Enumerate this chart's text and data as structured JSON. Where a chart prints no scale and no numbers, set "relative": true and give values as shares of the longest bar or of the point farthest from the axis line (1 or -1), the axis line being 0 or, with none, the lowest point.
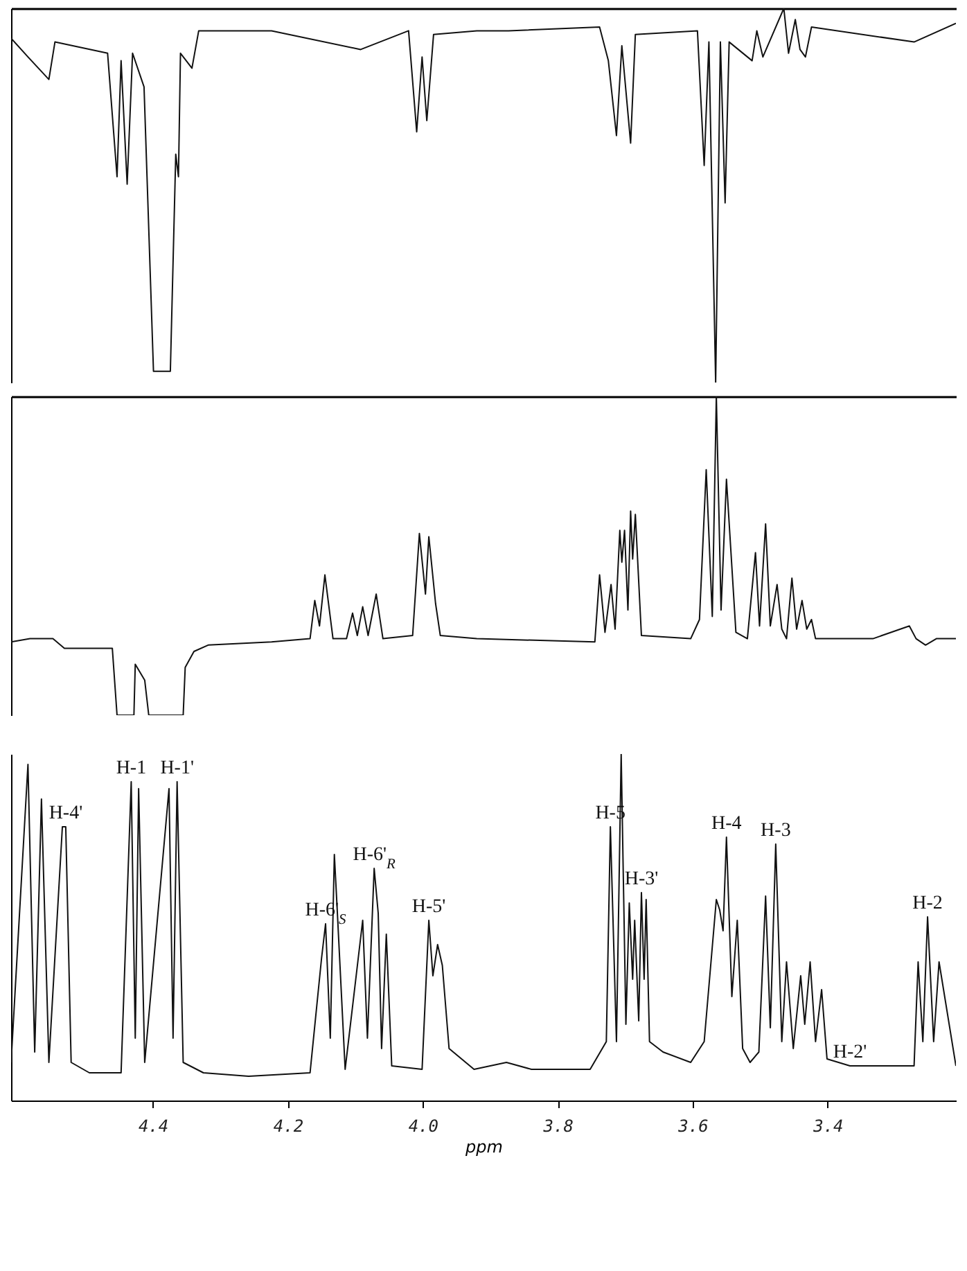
{
  "chart_data": [
    {
      "type": "line",
      "relative": true,
      "color": "#111111",
      "marker": "none",
      "line_style": "solid",
      "tick_labels": false,
      "xlim": [
        4.61,
        3.21
      ],
      "x": [
        4.61,
        4.585,
        4.554,
        4.545,
        4.467,
        4.453,
        4.447,
        4.438,
        4.43,
        4.413,
        4.399,
        4.374,
        4.366,
        4.362,
        4.359,
        4.342,
        4.332,
        4.224,
        4.092,
        4.021,
        4.009,
        4.001,
        3.994,
        3.984,
        3.92,
        3.873,
        3.738,
        3.725,
        3.713,
        3.705,
        3.692,
        3.685,
        3.593,
        3.583,
        3.576,
        3.566,
        3.559,
        3.552,
        3.546,
        3.512,
        3.505,
        3.496,
        3.465,
        3.458,
        3.448,
        3.441,
        3.433,
        3.424,
        3.272,
        3.21
      ],
      "values": [
        0.92,
        0.87,
        0.81,
        0.91,
        0.88,
        0.55,
        0.86,
        0.53,
        0.88,
        0.79,
        0.03,
        0.03,
        0.61,
        0.55,
        0.88,
        0.84,
        0.94,
        0.94,
        0.89,
        0.94,
        0.67,
        0.87,
        0.7,
        0.93,
        0.94,
        0.94,
        0.95,
        0.86,
        0.66,
        0.9,
        0.64,
        0.93,
        0.94,
        0.58,
        0.91,
        0.0,
        0.91,
        0.48,
        0.91,
        0.86,
        0.94,
        0.87,
        1.0,
        0.88,
        0.97,
        0.89,
        0.87,
        0.95,
        0.91,
        0.96
      ]
    },
    {
      "type": "line",
      "relative": true,
      "color": "#111111",
      "marker": "none",
      "line_style": "solid",
      "tick_labels": false,
      "xlim": [
        4.61,
        3.21
      ],
      "x": [
        4.61,
        4.582,
        4.548,
        4.531,
        4.46,
        4.453,
        4.428,
        4.426,
        4.412,
        4.406,
        4.355,
        4.352,
        4.339,
        4.318,
        4.224,
        4.167,
        4.16,
        4.153,
        4.145,
        4.133,
        4.113,
        4.104,
        4.097,
        4.089,
        4.081,
        4.069,
        4.059,
        4.015,
        4.005,
        3.996,
        3.991,
        3.981,
        3.974,
        3.92,
        3.745,
        3.738,
        3.73,
        3.721,
        3.715,
        3.708,
        3.705,
        3.701,
        3.696,
        3.692,
        3.689,
        3.685,
        3.676,
        3.603,
        3.59,
        3.58,
        3.571,
        3.565,
        3.558,
        3.55,
        3.536,
        3.519,
        3.507,
        3.501,
        3.492,
        3.485,
        3.475,
        3.468,
        3.461,
        3.453,
        3.446,
        3.438,
        3.431,
        3.424,
        3.418,
        3.333,
        3.279,
        3.269,
        3.255,
        3.239,
        3.21
      ],
      "values": [
        0.23,
        0.24,
        0.24,
        0.21,
        0.21,
        0.0,
        0.0,
        0.16,
        0.11,
        0.0,
        0.0,
        0.15,
        0.2,
        0.22,
        0.23,
        0.24,
        0.36,
        0.28,
        0.44,
        0.24,
        0.24,
        0.32,
        0.25,
        0.34,
        0.25,
        0.38,
        0.24,
        0.25,
        0.57,
        0.38,
        0.56,
        0.35,
        0.25,
        0.24,
        0.23,
        0.44,
        0.26,
        0.41,
        0.27,
        0.58,
        0.48,
        0.58,
        0.33,
        0.64,
        0.49,
        0.63,
        0.25,
        0.24,
        0.3,
        0.77,
        0.31,
        1.0,
        0.33,
        0.74,
        0.26,
        0.24,
        0.51,
        0.28,
        0.6,
        0.28,
        0.41,
        0.27,
        0.24,
        0.43,
        0.27,
        0.36,
        0.27,
        0.3,
        0.24,
        0.24,
        0.28,
        0.24,
        0.22,
        0.24,
        0.24
      ]
    },
    {
      "type": "line",
      "relative": true,
      "color": "#111111",
      "marker": "none",
      "line_style": "solid",
      "xlabel": "ppm",
      "xlim": [
        4.61,
        3.21
      ],
      "xticks": [
        {
          "value": 4.4,
          "label": "4.4"
        },
        {
          "value": 4.2,
          "label": "4.2"
        },
        {
          "value": 4.0,
          "label": "4.0"
        },
        {
          "value": 3.8,
          "label": "3.8"
        },
        {
          "value": 3.6,
          "label": "3.6"
        },
        {
          "value": 3.4,
          "label": "3.4"
        }
      ],
      "annotations": [
        {
          "text": "H-4'",
          "x": 4.529,
          "y": 0.79
        },
        {
          "text": "H-1",
          "x": 4.432,
          "y": 0.92
        },
        {
          "text": "H-1'",
          "x": 4.364,
          "y": 0.92
        },
        {
          "text": "H-6'$_{S}$",
          "x": 4.144,
          "y": 0.51
        },
        {
          "text": "H-6'$_{R}$",
          "x": 4.072,
          "y": 0.67
        },
        {
          "text": "H-5'",
          "x": 3.991,
          "y": 0.52
        },
        {
          "text": "H-5",
          "x": 3.722,
          "y": 0.79
        },
        {
          "text": "H-3'",
          "x": 3.676,
          "y": 0.6
        },
        {
          "text": "H-4",
          "x": 3.55,
          "y": 0.76
        },
        {
          "text": "H-3",
          "x": 3.477,
          "y": 0.74
        },
        {
          "text": "H-2'",
          "x": 3.367,
          "y": 0.1
        },
        {
          "text": "H-2",
          "x": 3.252,
          "y": 0.53
        }
      ],
      "x": [
        4.61,
        4.585,
        4.575,
        4.565,
        4.554,
        4.534,
        4.529,
        4.521,
        4.494,
        4.447,
        4.432,
        4.426,
        4.421,
        4.412,
        4.376,
        4.37,
        4.364,
        4.355,
        4.325,
        4.258,
        4.167,
        4.15,
        4.144,
        4.137,
        4.131,
        4.127,
        4.115,
        4.089,
        4.082,
        4.072,
        4.066,
        4.061,
        4.054,
        4.046,
        4.001,
        3.991,
        3.985,
        3.978,
        3.971,
        3.961,
        3.924,
        3.876,
        3.839,
        3.752,
        3.728,
        3.722,
        3.713,
        3.706,
        3.699,
        3.694,
        3.689,
        3.686,
        3.68,
        3.676,
        3.672,
        3.669,
        3.664,
        3.644,
        3.603,
        3.583,
        3.565,
        3.56,
        3.555,
        3.55,
        3.542,
        3.534,
        3.526,
        3.515,
        3.502,
        3.492,
        3.485,
        3.477,
        3.468,
        3.461,
        3.451,
        3.44,
        3.434,
        3.426,
        3.418,
        3.409,
        3.401,
        3.367,
        3.272,
        3.266,
        3.259,
        3.252,
        3.243,
        3.235,
        3.21
      ],
      "values": [
        0.11,
        0.97,
        0.14,
        0.87,
        0.11,
        0.79,
        0.79,
        0.11,
        0.08,
        0.08,
        0.92,
        0.18,
        0.9,
        0.11,
        0.9,
        0.18,
        0.92,
        0.11,
        0.08,
        0.07,
        0.08,
        0.41,
        0.51,
        0.18,
        0.71,
        0.56,
        0.09,
        0.52,
        0.18,
        0.67,
        0.54,
        0.15,
        0.48,
        0.1,
        0.09,
        0.52,
        0.36,
        0.45,
        0.39,
        0.15,
        0.09,
        0.11,
        0.09,
        0.09,
        0.17,
        0.79,
        0.17,
        1.0,
        0.22,
        0.57,
        0.35,
        0.52,
        0.23,
        0.6,
        0.35,
        0.58,
        0.17,
        0.14,
        0.11,
        0.17,
        0.58,
        0.55,
        0.49,
        0.76,
        0.3,
        0.52,
        0.15,
        0.11,
        0.14,
        0.59,
        0.21,
        0.74,
        0.17,
        0.4,
        0.15,
        0.36,
        0.22,
        0.4,
        0.17,
        0.32,
        0.12,
        0.1,
        0.1,
        0.4,
        0.17,
        0.53,
        0.17,
        0.4,
        0.1
      ]
    }
  ]
}
